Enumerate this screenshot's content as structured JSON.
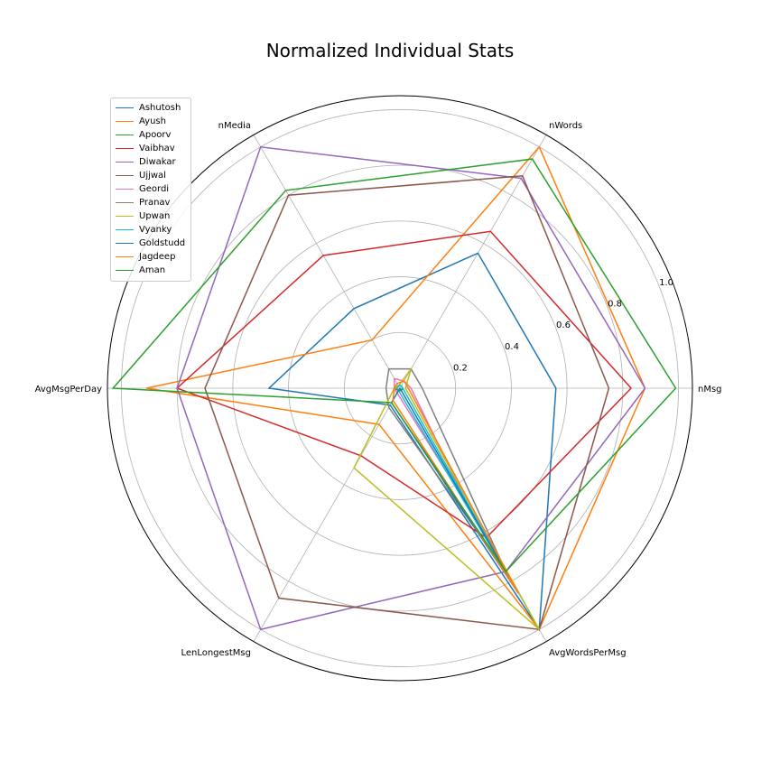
{
  "chart_data": {
    "type": "radar",
    "title": "Normalized Individual Stats",
    "axes": [
      "nMsg",
      "nWords",
      "nMedia",
      "AvgMsgPerDay",
      "LenLongestMsg",
      "AvgWordsPerMsg"
    ],
    "radial_ticks": [
      0.2,
      0.4,
      0.6,
      0.8,
      1.0
    ],
    "radial_tick_labels": [
      "0.2",
      "0.4",
      "0.6",
      "0.8",
      "1.0"
    ],
    "rlim": [
      0,
      1.05
    ],
    "grid": true,
    "legend_position": "top-left",
    "series": [
      {
        "name": "Ashutosh",
        "color": "#1f77b4",
        "values": [
          0.56,
          0.56,
          0.33,
          0.47,
          0.07,
          1.0
        ]
      },
      {
        "name": "Ayush",
        "color": "#ff7f0e",
        "values": [
          0.88,
          1.0,
          0.2,
          0.91,
          0.15,
          1.0
        ]
      },
      {
        "name": "Apoorv",
        "color": "#2ca02c",
        "values": [
          0.01,
          0.01,
          0.01,
          0.02,
          0.01,
          0.01
        ]
      },
      {
        "name": "Vaibhav",
        "color": "#d62728",
        "values": [
          0.83,
          0.65,
          0.55,
          0.8,
          0.28,
          0.62
        ]
      },
      {
        "name": "Diwakar",
        "color": "#9467bd",
        "values": [
          0.88,
          0.87,
          1.0,
          0.8,
          1.0,
          0.76
        ]
      },
      {
        "name": "Ujjwal",
        "color": "#8c564b",
        "values": [
          0.75,
          0.88,
          0.8,
          0.7,
          0.87,
          1.0
        ]
      },
      {
        "name": "Geordi",
        "color": "#e377c2",
        "values": [
          0.04,
          0.03,
          0.04,
          0.02,
          0.02,
          0.5
        ]
      },
      {
        "name": "Pranav",
        "color": "#7f7f7f",
        "values": [
          0.08,
          0.08,
          0.08,
          0.05,
          0.08,
          0.76
        ]
      },
      {
        "name": "Upwan",
        "color": "#bcbd22",
        "values": [
          0.02,
          0.08,
          0.01,
          0.02,
          0.33,
          1.0
        ]
      },
      {
        "name": "Vyanky",
        "color": "#17becf",
        "values": [
          0.01,
          0.01,
          0.01,
          0.01,
          0.01,
          0.85
        ]
      },
      {
        "name": "Goldstudd",
        "color": "#1f77b4",
        "values": [
          0.0,
          0.0,
          0.0,
          0.0,
          0.06,
          0.85
        ]
      },
      {
        "name": "Jagdeep",
        "color": "#ff7f0e",
        "values": [
          0.03,
          0.03,
          0.02,
          0.02,
          0.05,
          0.85
        ]
      },
      {
        "name": "Aman",
        "color": "#2ca02c",
        "values": [
          0.99,
          0.95,
          0.82,
          1.03,
          0.06,
          0.76
        ]
      }
    ]
  }
}
